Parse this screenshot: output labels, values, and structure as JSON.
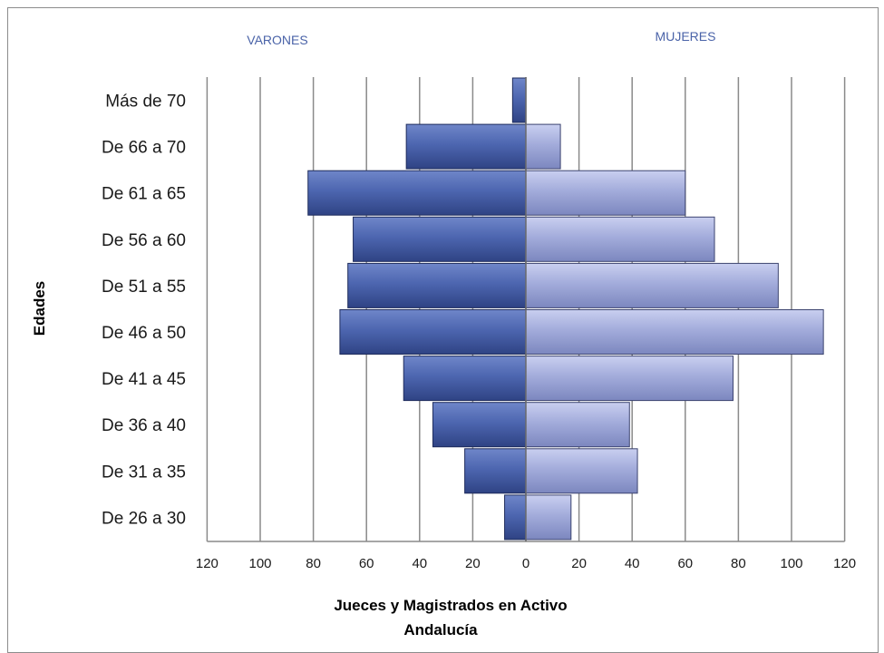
{
  "chart_data": {
    "type": "bar",
    "orientation": "horizontal",
    "layout": "population-pyramid",
    "title_lines": [
      "Jueces y Magistrados   en Activo",
      "Andalucía"
    ],
    "ylabel": "Edades",
    "categories": [
      "De 26 a 30",
      "De 31 a 35",
      "De 36 a 40",
      "De 41 a 45",
      "De 46 a 50",
      "De 51 a 55",
      "De 56 a 60",
      "De 61 a 65",
      "De 66 a 70",
      "Más de 70"
    ],
    "series": [
      {
        "name": "VARONES",
        "side": "left",
        "color": "#3f58a3",
        "values": [
          8,
          23,
          35,
          46,
          70,
          67,
          65,
          82,
          45,
          5
        ]
      },
      {
        "name": "MUJERES",
        "side": "right",
        "color": "#9aa4d4",
        "values": [
          17,
          42,
          39,
          78,
          112,
          95,
          71,
          60,
          13,
          0
        ]
      }
    ],
    "xticks": [
      120,
      100,
      80,
      60,
      40,
      20,
      0,
      20,
      40,
      60,
      80,
      100,
      120
    ],
    "xlim": [
      -120,
      120
    ],
    "grid": true
  }
}
